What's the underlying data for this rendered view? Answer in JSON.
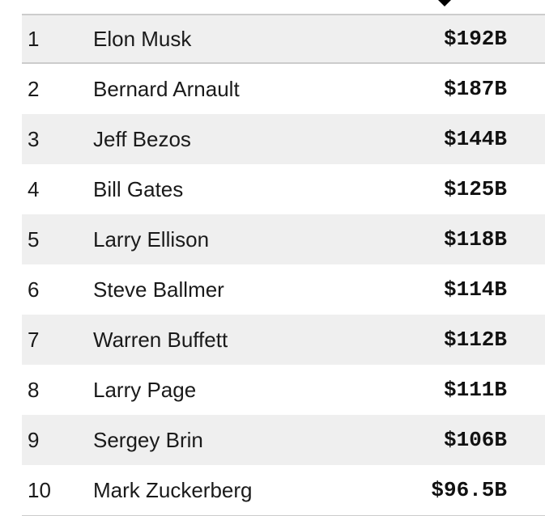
{
  "table": {
    "sort_indicator": "sort-descending",
    "rows": [
      {
        "rank": "1",
        "name": "Elon Musk",
        "net_worth": "$192B"
      },
      {
        "rank": "2",
        "name": "Bernard Arnault",
        "net_worth": "$187B"
      },
      {
        "rank": "3",
        "name": "Jeff Bezos",
        "net_worth": "$144B"
      },
      {
        "rank": "4",
        "name": "Bill Gates",
        "net_worth": "$125B"
      },
      {
        "rank": "5",
        "name": "Larry Ellison",
        "net_worth": "$118B"
      },
      {
        "rank": "6",
        "name": "Steve Ballmer",
        "net_worth": "$114B"
      },
      {
        "rank": "7",
        "name": "Warren Buffett",
        "net_worth": "$112B"
      },
      {
        "rank": "8",
        "name": "Larry Page",
        "net_worth": "$111B"
      },
      {
        "rank": "9",
        "name": "Sergey Brin",
        "net_worth": "$106B"
      },
      {
        "rank": "10",
        "name": "Mark Zuckerberg",
        "net_worth": "$96.5B"
      }
    ]
  },
  "colors": {
    "shaded_row": "#efefef",
    "divider": "#cccccc",
    "text": "#1a1a1a"
  }
}
